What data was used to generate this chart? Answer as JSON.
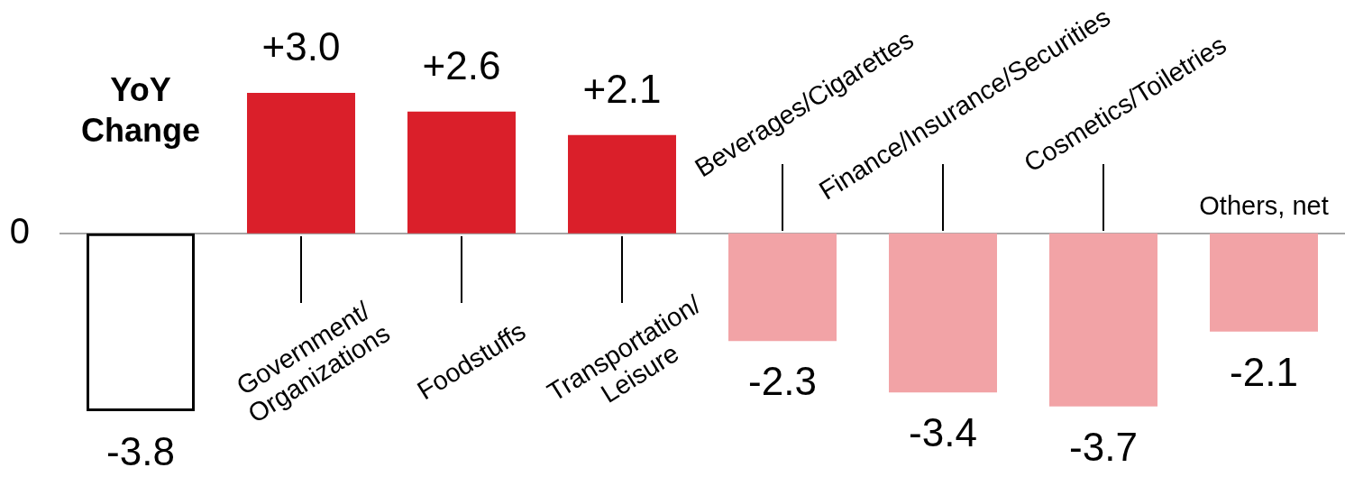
{
  "chart_data": {
    "type": "bar",
    "categories": [
      "YoY\nChange",
      "Government/\nOrganizations",
      "Foodstuffs",
      "Transportation/\nLeisure",
      "Beverages/Cigarettes",
      "Finance/Insurance/Securities",
      "Cosmetics/Toiletries",
      "Others, net"
    ],
    "values": [
      -3.8,
      3.0,
      2.6,
      2.1,
      -2.3,
      -3.4,
      -3.7,
      -2.1
    ],
    "colors": [
      "#000000",
      "#da1f2a",
      "#da1f2a",
      "#da1f2a",
      "#f2a3a6",
      "#f2a3a6",
      "#f2a3a6",
      "#f2a3a6"
    ],
    "value_labels": [
      "-3.8",
      "+3.0",
      "+2.6",
      "+2.1",
      "-2.3",
      "-3.4",
      "-3.7",
      "-2.1"
    ],
    "annotations": [
      "0"
    ],
    "grid": false
  }
}
